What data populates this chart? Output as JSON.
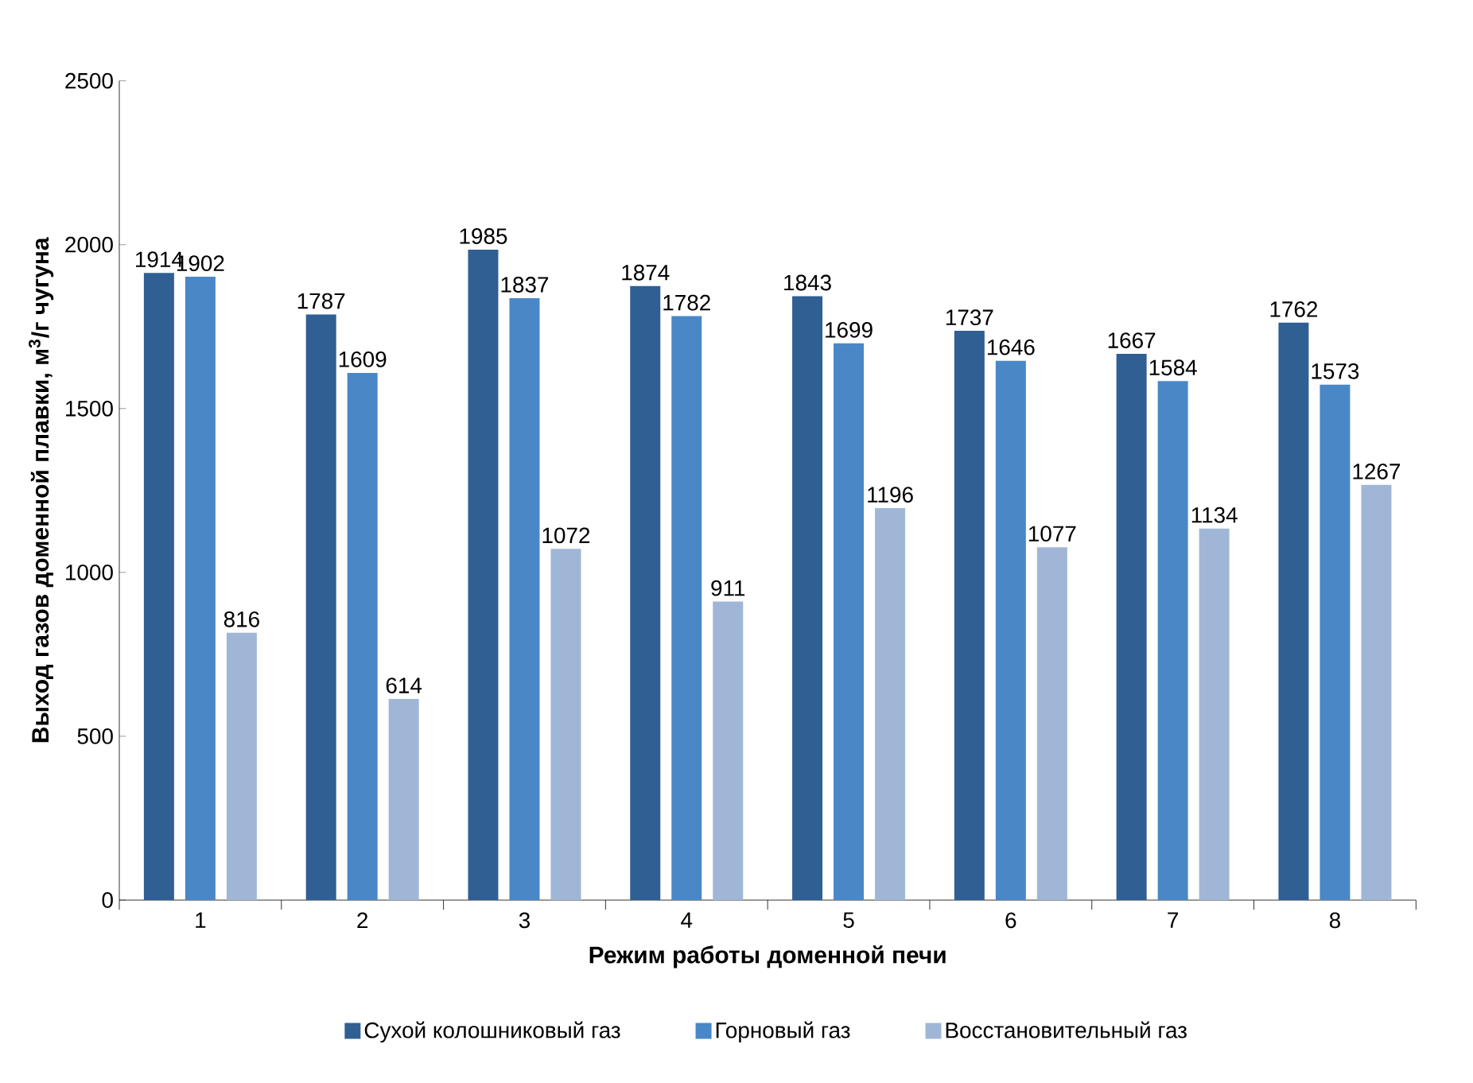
{
  "chart_data": {
    "type": "bar",
    "xlabel": "Режим работы доменной печи",
    "ylabel": "Выход газов доменной плавки, м$^{3}$/г чугуна",
    "categories": [
      "1",
      "2",
      "3",
      "4",
      "5",
      "6",
      "7",
      "8"
    ],
    "series": [
      {
        "name": "Сухой колошниковый газ",
        "color": "#2f5f93",
        "values": [
          1914,
          1787,
          1985,
          1874,
          1843,
          1737,
          1667,
          1762
        ]
      },
      {
        "name": "Горновый газ",
        "color": "#4a87c7",
        "values": [
          1902,
          1609,
          1837,
          1782,
          1699,
          1646,
          1584,
          1573
        ]
      },
      {
        "name": "Восстановительный газ",
        "color": "#a0b6d7",
        "values": [
          816,
          614,
          1072,
          911,
          1196,
          1077,
          1134,
          1267
        ]
      }
    ],
    "ylim": [
      0,
      2500
    ],
    "yticks": [
      0,
      500,
      1000,
      1500,
      2000,
      2500
    ],
    "data_labels": true,
    "legend": "bottom"
  }
}
